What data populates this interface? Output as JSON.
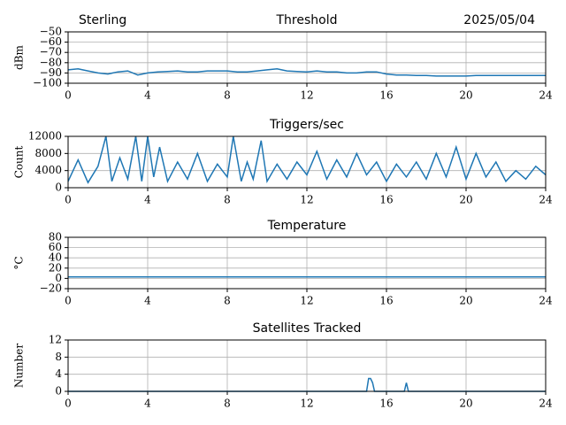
{
  "chart_data": [
    {
      "type": "line",
      "title": "Threshold",
      "title_left": "Sterling",
      "title_right": "2025/05/04",
      "y_label": "dBm",
      "x": [
        0,
        0.5,
        1,
        1.5,
        2,
        2.5,
        3,
        3.5,
        4,
        4.5,
        5,
        5.5,
        6,
        6.5,
        7,
        7.5,
        8,
        8.5,
        9,
        9.5,
        10,
        10.5,
        11,
        11.5,
        12,
        12.5,
        13,
        13.5,
        14,
        14.5,
        15,
        15.5,
        16,
        16.5,
        17,
        17.5,
        18,
        18.5,
        19,
        19.5,
        20,
        20.5,
        21,
        21.5,
        22,
        22.5,
        23,
        23.5,
        24
      ],
      "values": [
        -87,
        -86,
        -88,
        -90,
        -91,
        -89,
        -88,
        -92,
        -90,
        -89,
        -88.5,
        -88,
        -89,
        -89,
        -88,
        -88,
        -88,
        -89,
        -89,
        -88,
        -87,
        -86,
        -88,
        -88.5,
        -89,
        -88,
        -89,
        -89,
        -90,
        -90,
        -89,
        -89,
        -91,
        -92,
        -92,
        -92.5,
        -92.5,
        -93,
        -93,
        -93,
        -93,
        -92.5,
        -92.5,
        -92.5,
        -92.5,
        -92.5,
        -92.5,
        -92.5,
        -92.5
      ],
      "color": "#1f77b4",
      "grid": true,
      "xlim": [
        0,
        24
      ],
      "xticks": [
        0,
        4,
        8,
        12,
        16,
        20,
        24
      ],
      "ylim": [
        -100,
        -50
      ],
      "yticks": [
        {
          "value": -100,
          "label": "−100"
        },
        {
          "value": -90,
          "label": "−90"
        },
        {
          "value": -80,
          "label": "−80"
        },
        {
          "value": -70,
          "label": "−70"
        },
        {
          "value": -60,
          "label": "−60"
        },
        {
          "value": -50,
          "label": "−50"
        }
      ]
    },
    {
      "type": "line",
      "title": "Triggers/sec",
      "y_label": "Count",
      "x": [
        0,
        0.5,
        1,
        1.5,
        1.9,
        2.2,
        2.6,
        3,
        3.4,
        3.7,
        4,
        4.3,
        4.6,
        5,
        5.5,
        6,
        6.5,
        7,
        7.5,
        8,
        8.3,
        8.7,
        9,
        9.3,
        9.7,
        10,
        10.5,
        11,
        11.5,
        12,
        12.5,
        13,
        13.5,
        14,
        14.5,
        15,
        15.5,
        16,
        16.5,
        17,
        17.5,
        18,
        18.5,
        19,
        19.5,
        20,
        20.5,
        21,
        21.5,
        22,
        22.5,
        23,
        23.5,
        24
      ],
      "values": [
        1500,
        6500,
        1200,
        5000,
        12000,
        1500,
        7000,
        2000,
        12000,
        1500,
        12000,
        2500,
        9500,
        1500,
        6000,
        2000,
        8000,
        1500,
        5500,
        2500,
        12000,
        1500,
        6000,
        2000,
        11000,
        1500,
        5500,
        2000,
        6000,
        3000,
        8500,
        2000,
        6500,
        2500,
        8000,
        3000,
        6000,
        1500,
        5500,
        2500,
        6000,
        2000,
        8000,
        2500,
        9500,
        2000,
        8000,
        2500,
        6000,
        1500,
        4000,
        2000,
        5000,
        3000
      ],
      "color": "#1f77b4",
      "grid": true,
      "xlim": [
        0,
        24
      ],
      "xticks": [
        0,
        4,
        8,
        12,
        16,
        20,
        24
      ],
      "ylim": [
        0,
        12000
      ],
      "yticks": [
        0,
        4000,
        8000,
        12000
      ]
    },
    {
      "type": "line",
      "title": "Temperature",
      "y_label": "°C",
      "x": [
        0,
        24
      ],
      "values": [
        3,
        3
      ],
      "color": "#1f77b4",
      "grid": true,
      "xlim": [
        0,
        24
      ],
      "xticks": [
        0,
        4,
        8,
        12,
        16,
        20,
        24
      ],
      "ylim": [
        -20,
        80
      ],
      "yticks": [
        {
          "value": -20,
          "label": "−20"
        },
        0,
        20,
        40,
        60,
        80
      ]
    },
    {
      "type": "line",
      "title": "Satellites Tracked",
      "y_label": "Number",
      "x": [
        0,
        15,
        15.1,
        15.2,
        15.3,
        15.4,
        16.9,
        17,
        17.1,
        24
      ],
      "values": [
        0,
        0,
        3,
        3,
        2,
        0,
        0,
        2,
        0,
        0
      ],
      "color": "#1f77b4",
      "grid": true,
      "xlim": [
        0,
        24
      ],
      "xticks": [
        0,
        4,
        8,
        12,
        16,
        20,
        24
      ],
      "ylim": [
        0,
        12
      ],
      "yticks": [
        0,
        4,
        8,
        12
      ]
    }
  ]
}
